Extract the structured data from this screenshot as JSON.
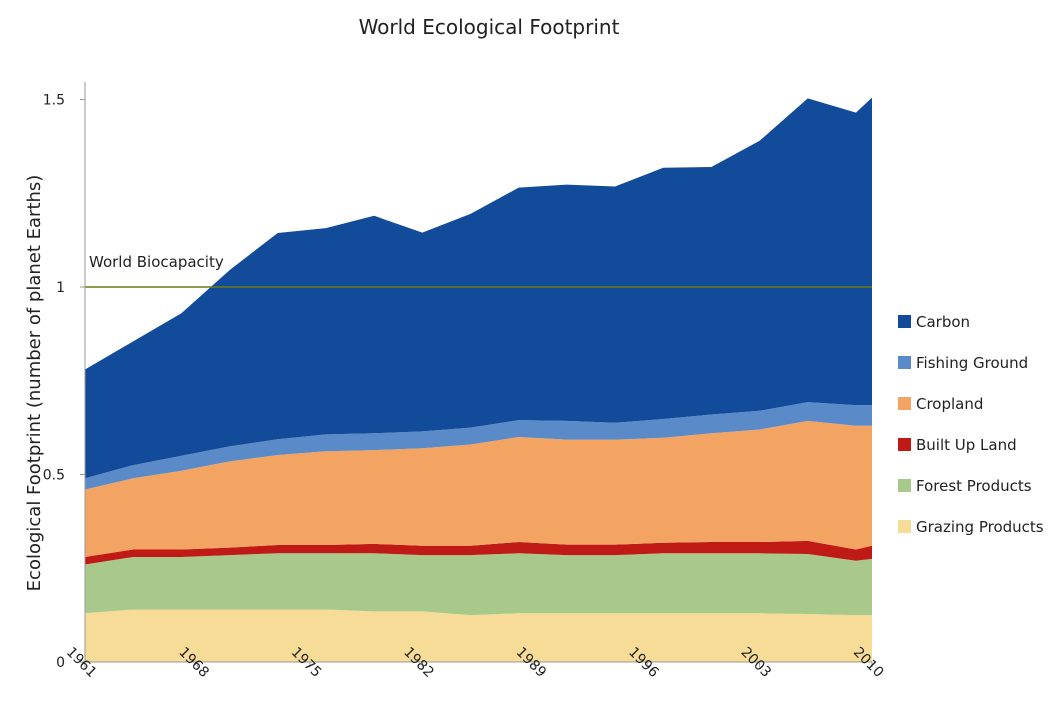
{
  "chart_data": {
    "type": "area",
    "title": "World Ecological Footprint",
    "xlabel": "",
    "ylabel": "Ecological Footprint (number of planet Earths)",
    "xlim": [
      1961,
      2010
    ],
    "ylim": [
      0,
      1.6
    ],
    "yticks": [
      0,
      0.5,
      1,
      1.5
    ],
    "yticklabels": [
      "0",
      "0.5",
      "1",
      "1.5"
    ],
    "xticks": [
      1961,
      1968,
      1975,
      1982,
      1989,
      1996,
      2003,
      2010
    ],
    "xticklabels": [
      "1961",
      "1968",
      "1975",
      "1982",
      "1989",
      "1996",
      "2003",
      "2010"
    ],
    "grid": false,
    "stacked": true,
    "legend_position": "right",
    "x": [
      1961,
      1964,
      1967,
      1970,
      1973,
      1976,
      1979,
      1982,
      1985,
      1988,
      1991,
      1994,
      1997,
      2000,
      2003,
      2006,
      2009,
      2010
    ],
    "series": [
      {
        "name": "Grazing Products",
        "color": "#F7DC97",
        "values": [
          0.13,
          0.14,
          0.14,
          0.14,
          0.14,
          0.14,
          0.135,
          0.135,
          0.125,
          0.13,
          0.13,
          0.13,
          0.13,
          0.13,
          0.13,
          0.128,
          0.125,
          0.125
        ]
      },
      {
        "name": "Forest Products",
        "color": "#A9C98C",
        "values": [
          0.13,
          0.14,
          0.14,
          0.145,
          0.15,
          0.15,
          0.155,
          0.15,
          0.16,
          0.16,
          0.155,
          0.155,
          0.16,
          0.16,
          0.16,
          0.16,
          0.145,
          0.15
        ]
      },
      {
        "name": "Built Up Land",
        "color": "#C01A17",
        "values": [
          0.02,
          0.02,
          0.02,
          0.02,
          0.022,
          0.022,
          0.025,
          0.025,
          0.025,
          0.03,
          0.028,
          0.028,
          0.028,
          0.03,
          0.03,
          0.035,
          0.03,
          0.035
        ]
      },
      {
        "name": "Cropland",
        "color": "#F4A462",
        "values": [
          0.18,
          0.19,
          0.21,
          0.23,
          0.24,
          0.25,
          0.25,
          0.26,
          0.27,
          0.28,
          0.28,
          0.28,
          0.28,
          0.29,
          0.3,
          0.32,
          0.33,
          0.32
        ]
      },
      {
        "name": "Fishing Ground",
        "color": "#5A8AC8",
        "values": [
          0.03,
          0.035,
          0.04,
          0.04,
          0.042,
          0.045,
          0.045,
          0.045,
          0.045,
          0.045,
          0.05,
          0.045,
          0.05,
          0.05,
          0.05,
          0.05,
          0.055,
          0.055
        ]
      },
      {
        "name": "Carbon",
        "color": "#114B9A",
        "values": [
          0.29,
          0.33,
          0.38,
          0.47,
          0.55,
          0.55,
          0.58,
          0.53,
          0.57,
          0.62,
          0.63,
          0.63,
          0.67,
          0.66,
          0.72,
          0.81,
          0.78,
          0.82
        ]
      }
    ],
    "annotations": [
      {
        "text": "World Biocapacity",
        "y": 1.0,
        "line_color": "#6B7A12"
      }
    ]
  }
}
